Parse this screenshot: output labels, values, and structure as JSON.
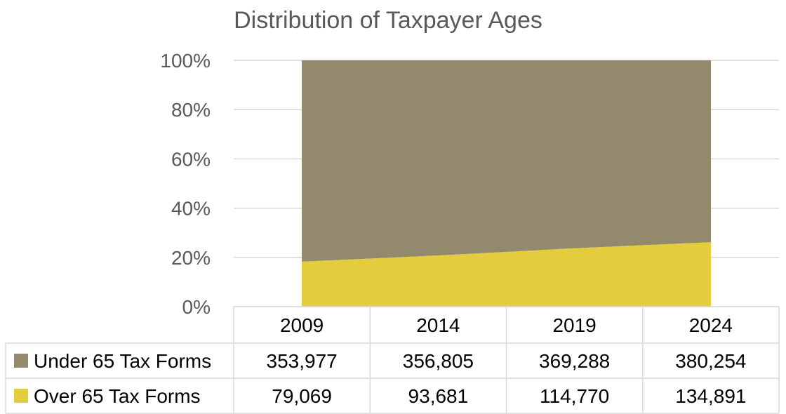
{
  "chart_data": {
    "type": "area",
    "stacked": "percent",
    "title": "Distribution of Taxpayer Ages",
    "categories": [
      "2009",
      "2014",
      "2019",
      "2024"
    ],
    "series": [
      {
        "name": "Under 65 Tax Forms",
        "values": [
          353977,
          356805,
          369288,
          380254
        ],
        "value_labels": [
          "353,977",
          "356,805",
          "369,288",
          "380,254"
        ],
        "color": "#938a6e"
      },
      {
        "name": "Over 65 Tax Forms",
        "values": [
          79069,
          93681,
          114770,
          134891
        ],
        "value_labels": [
          "79,069",
          "93,681",
          "114,770",
          "134,891"
        ],
        "color": "#e3cd3e"
      }
    ],
    "ylim": [
      0,
      100
    ],
    "yticks": [
      "0%",
      "20%",
      "40%",
      "60%",
      "80%",
      "100%"
    ],
    "grid": true,
    "legend": "data-table"
  }
}
